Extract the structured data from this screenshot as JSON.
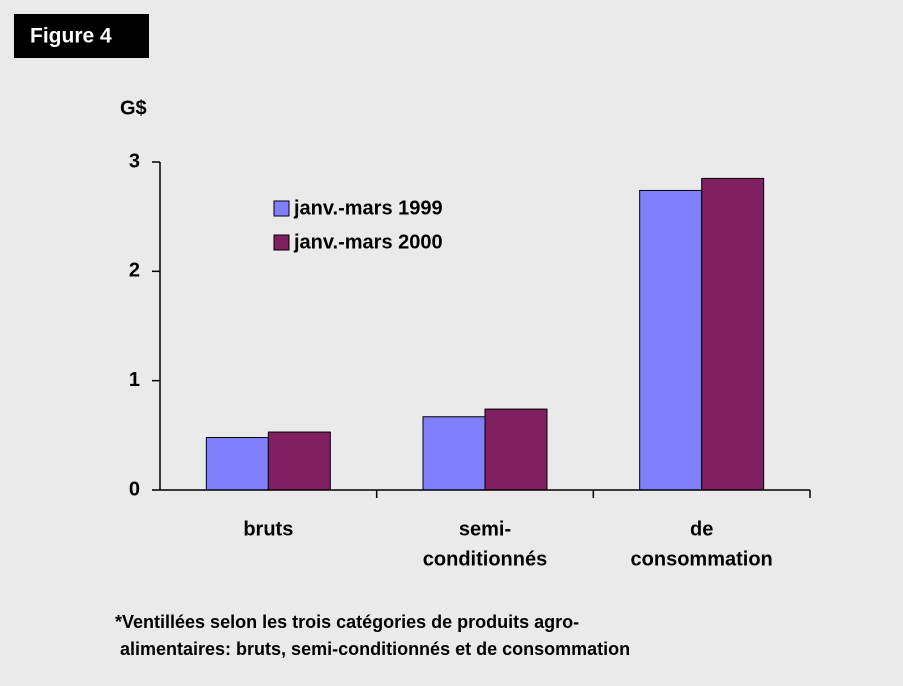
{
  "chart_data": {
    "type": "bar",
    "badge": "Figure 4",
    "y_label": "G$",
    "categories": [
      [
        "bruts"
      ],
      [
        "semi-",
        "conditionnés"
      ],
      [
        "de",
        "consommation"
      ]
    ],
    "series": [
      {
        "name": "janv.-mars 1999",
        "color": "#8080ff",
        "values": [
          0.48,
          0.67,
          2.74
        ]
      },
      {
        "name": "janv.-mars 2000",
        "color": "#802060",
        "values": [
          0.53,
          0.74,
          2.85
        ]
      }
    ],
    "ylim": [
      0,
      3
    ],
    "yticks": [
      0,
      1,
      2,
      3
    ],
    "note": [
      "*Ventillées selon les trois catégories de produits agro-",
      " alimentaires: bruts, semi-conditionnés et de consommation"
    ]
  }
}
